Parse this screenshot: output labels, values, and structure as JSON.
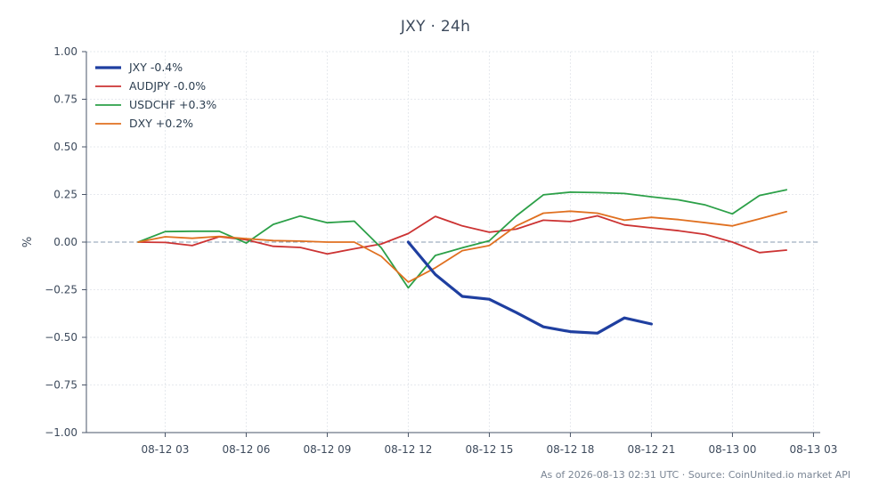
{
  "title": "JXY · 24h",
  "footer": "As of 2026-08-13 02:31 UTC · Source: CoinUnited.io market API",
  "chart_data": {
    "type": "line",
    "title": "JXY · 24h",
    "xlabel": "",
    "ylabel": "%",
    "ylim": [
      -1.0,
      1.0
    ],
    "xlim": [
      "2026-08-12 00:05",
      "2026-08-13 03:15"
    ],
    "y_ticks": [
      1.0,
      0.75,
      0.5,
      0.25,
      0.0,
      -0.25,
      -0.5,
      -0.75,
      -1.0
    ],
    "y_tick_labels": [
      "1.00",
      "0.75",
      "0.50",
      "0.25",
      "0.00",
      "−0.25",
      "−0.50",
      "−0.75",
      "−1.00"
    ],
    "x_ticks": [
      "2026-08-12 03:00",
      "2026-08-12 06:00",
      "2026-08-12 09:00",
      "2026-08-12 12:00",
      "2026-08-12 15:00",
      "2026-08-12 18:00",
      "2026-08-12 21:00",
      "2026-08-13 00:00",
      "2026-08-13 03:00"
    ],
    "x_tick_labels": [
      "08-12 03",
      "08-12 06",
      "08-12 09",
      "08-12 12",
      "08-12 15",
      "08-12 18",
      "08-12 21",
      "08-13 00",
      "08-13 03"
    ],
    "grid": true,
    "zero_line": true,
    "legend_position": "top-left",
    "series": [
      {
        "name": "JXY -0.4%",
        "color": "#1f3fa0",
        "emphasis": true,
        "x": [
          "2026-08-12 12:00",
          "2026-08-12 13:00",
          "2026-08-12 14:00",
          "2026-08-12 15:00",
          "2026-08-12 16:00",
          "2026-08-12 17:00",
          "2026-08-12 18:00",
          "2026-08-12 19:00",
          "2026-08-12 20:00",
          "2026-08-12 21:00"
        ],
        "y": [
          0.0,
          -0.17,
          -0.285,
          -0.3,
          -0.37,
          -0.445,
          -0.47,
          -0.478,
          -0.398,
          -0.43
        ]
      },
      {
        "name": "AUDJPY -0.0%",
        "color": "#cc3333",
        "x": [
          "2026-08-12 02:00",
          "2026-08-12 03:00",
          "2026-08-12 04:00",
          "2026-08-12 05:00",
          "2026-08-12 06:00",
          "2026-08-12 07:00",
          "2026-08-12 08:00",
          "2026-08-12 09:00",
          "2026-08-12 10:00",
          "2026-08-12 11:00",
          "2026-08-12 12:00",
          "2026-08-12 13:00",
          "2026-08-12 14:00",
          "2026-08-12 15:00",
          "2026-08-12 16:00",
          "2026-08-12 17:00",
          "2026-08-12 18:00",
          "2026-08-12 19:00",
          "2026-08-12 20:00",
          "2026-08-12 21:00",
          "2026-08-12 22:00",
          "2026-08-12 23:00",
          "2026-08-13 00:00",
          "2026-08-13 01:00",
          "2026-08-13 02:00"
        ],
        "y": [
          0.0,
          -0.002,
          -0.018,
          0.028,
          0.012,
          -0.022,
          -0.028,
          -0.062,
          -0.035,
          -0.01,
          0.045,
          0.135,
          0.085,
          0.052,
          0.068,
          0.115,
          0.108,
          0.138,
          0.09,
          0.075,
          0.06,
          0.04,
          0.0,
          -0.055,
          -0.042
        ]
      },
      {
        "name": "USDCHF +0.3%",
        "color": "#2ca048",
        "x": [
          "2026-08-12 02:00",
          "2026-08-12 03:00",
          "2026-08-12 04:00",
          "2026-08-12 05:00",
          "2026-08-12 06:00",
          "2026-08-12 07:00",
          "2026-08-12 08:00",
          "2026-08-12 09:00",
          "2026-08-12 10:00",
          "2026-08-12 11:00",
          "2026-08-12 12:00",
          "2026-08-12 13:00",
          "2026-08-12 14:00",
          "2026-08-12 15:00",
          "2026-08-12 16:00",
          "2026-08-12 17:00",
          "2026-08-12 18:00",
          "2026-08-12 19:00",
          "2026-08-12 20:00",
          "2026-08-12 21:00",
          "2026-08-12 22:00",
          "2026-08-12 23:00",
          "2026-08-13 00:00",
          "2026-08-13 01:00",
          "2026-08-13 02:00"
        ],
        "y": [
          0.0,
          0.055,
          0.057,
          0.057,
          -0.005,
          0.093,
          0.137,
          0.102,
          0.11,
          -0.03,
          -0.24,
          -0.07,
          -0.03,
          0.007,
          0.138,
          0.248,
          0.262,
          0.26,
          0.255,
          0.238,
          0.222,
          0.195,
          0.148,
          0.245,
          0.275
        ]
      },
      {
        "name": "DXY +0.2%",
        "color": "#e07020",
        "x": [
          "2026-08-12 02:00",
          "2026-08-12 03:00",
          "2026-08-12 04:00",
          "2026-08-12 05:00",
          "2026-08-12 06:00",
          "2026-08-12 07:00",
          "2026-08-12 08:00",
          "2026-08-12 09:00",
          "2026-08-12 10:00",
          "2026-08-12 11:00",
          "2026-08-12 12:00",
          "2026-08-12 13:00",
          "2026-08-12 14:00",
          "2026-08-12 15:00",
          "2026-08-12 16:00",
          "2026-08-12 17:00",
          "2026-08-12 18:00",
          "2026-08-12 19:00",
          "2026-08-12 20:00",
          "2026-08-12 21:00",
          "2026-08-12 22:00",
          "2026-08-12 23:00",
          "2026-08-13 00:00",
          "2026-08-13 01:00",
          "2026-08-13 02:00"
        ],
        "y": [
          0.0,
          0.028,
          0.02,
          0.03,
          0.018,
          0.008,
          0.005,
          0.0,
          0.0,
          -0.075,
          -0.21,
          -0.135,
          -0.045,
          -0.018,
          0.085,
          0.152,
          0.162,
          0.152,
          0.115,
          0.13,
          0.118,
          0.102,
          0.085,
          0.122,
          0.16
        ]
      }
    ]
  }
}
